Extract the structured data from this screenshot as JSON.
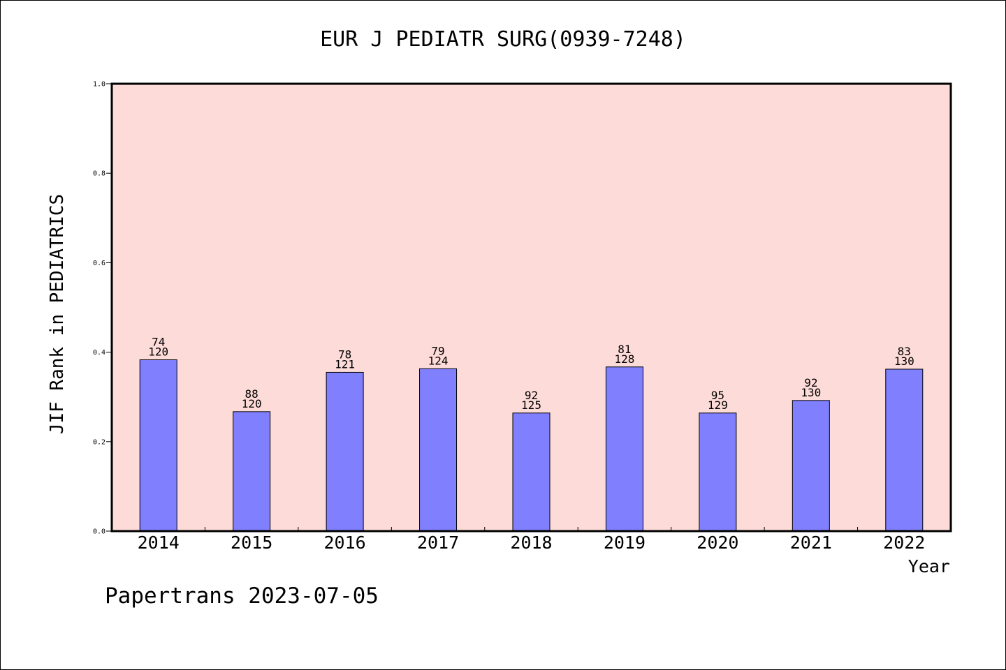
{
  "chart_data": {
    "type": "bar",
    "title": "EUR J PEDIATR SURG(0939-7248)",
    "xlabel": "Year",
    "ylabel": "JIF Rank in PEDIATRICS",
    "ylim": [
      0,
      1.0
    ],
    "yticks": [
      "0.0",
      "0.2",
      "0.4",
      "0.6",
      "0.8",
      "1.0"
    ],
    "categories": [
      "2014",
      "2015",
      "2016",
      "2017",
      "2018",
      "2019",
      "2020",
      "2021",
      "2022"
    ],
    "values": [
      0.383,
      0.267,
      0.355,
      0.363,
      0.264,
      0.367,
      0.264,
      0.292,
      0.362
    ],
    "rank": [
      "74",
      "88",
      "78",
      "79",
      "92",
      "81",
      "95",
      "92",
      "83"
    ],
    "total": [
      "120",
      "120",
      "121",
      "124",
      "125",
      "128",
      "129",
      "130",
      "130"
    ],
    "grid": false,
    "colors": {
      "plot_background": "#fddbd8",
      "bar_fill": "#8080ff",
      "bar_stroke": "#000000"
    }
  },
  "footer": "Papertrans 2023-07-05"
}
